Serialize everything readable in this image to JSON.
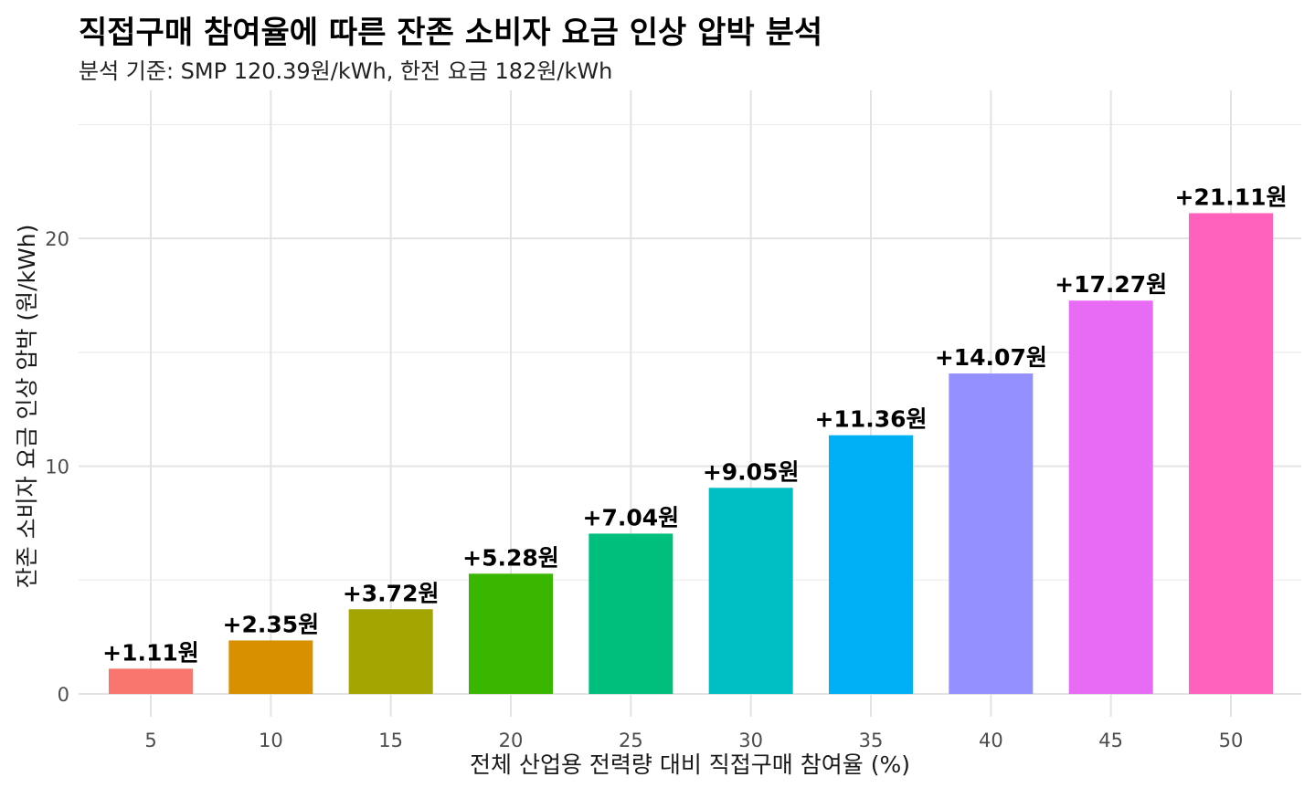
{
  "chart_data": {
    "type": "bar",
    "title": "직접구매 참여율에 따른 잔존 소비자 요금 인상 압박 분석",
    "subtitle": "분석 기준: SMP 120.39원/kWh, 한전 요금 182원/kWh",
    "xlabel": "전체 산업용 전력량 대비 직접구매 참여율 (%)",
    "ylabel": "잔존 소비자 요금 인상 압박 (원/kWh)",
    "categories": [
      "5",
      "10",
      "15",
      "20",
      "25",
      "30",
      "35",
      "40",
      "45",
      "50"
    ],
    "values": [
      1.11,
      2.35,
      3.72,
      5.28,
      7.04,
      9.05,
      11.36,
      14.07,
      17.27,
      21.11
    ],
    "labels": [
      "+1.11원",
      "+2.35원",
      "+3.72원",
      "+5.28원",
      "+7.04원",
      "+9.05원",
      "+11.36원",
      "+14.07원",
      "+17.27원",
      "+21.11원"
    ],
    "colors": [
      "#F8766D",
      "#D89000",
      "#A3A500",
      "#39B600",
      "#00BF7D",
      "#00BFC4",
      "#00B0F6",
      "#9590FF",
      "#E76BF3",
      "#FF62BC"
    ],
    "y_ticks": [
      "0",
      "10",
      "20"
    ],
    "ylim": [
      -1,
      26.5
    ],
    "grid": true,
    "legend": "none"
  }
}
